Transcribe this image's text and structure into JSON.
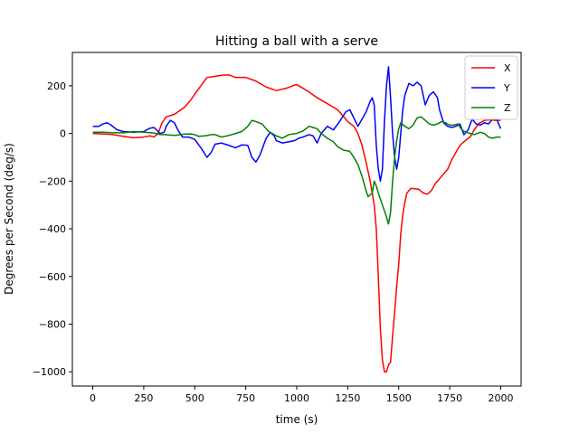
{
  "chart_data": {
    "type": "line",
    "title": "Hitting a ball with a serve",
    "xlabel": "time (s)",
    "ylabel": "Degrees per Second (deg/s)",
    "xlim": [
      -100,
      2100
    ],
    "ylim": [
      -1060,
      340
    ],
    "xticks": [
      0,
      250,
      500,
      750,
      1000,
      1250,
      1500,
      1750,
      2000
    ],
    "xtick_labels": [
      "0",
      "250",
      "500",
      "750",
      "1000",
      "1250",
      "1500",
      "1750",
      "2000"
    ],
    "yticks": [
      -1000,
      -800,
      -600,
      -400,
      -200,
      0,
      200
    ],
    "ytick_labels": [
      "−1000",
      "−800",
      "−600",
      "−400",
      "−200",
      "0",
      "200"
    ],
    "grid": false,
    "legend": "top-right",
    "series": [
      {
        "name": "X",
        "color": "#ff0000",
        "points": [
          [
            0,
            0
          ],
          [
            50,
            -2
          ],
          [
            100,
            -5
          ],
          [
            150,
            -12
          ],
          [
            200,
            -18
          ],
          [
            250,
            -15
          ],
          [
            280,
            -10
          ],
          [
            300,
            -15
          ],
          [
            320,
            0
          ],
          [
            340,
            45
          ],
          [
            360,
            70
          ],
          [
            400,
            80
          ],
          [
            450,
            110
          ],
          [
            480,
            140
          ],
          [
            500,
            165
          ],
          [
            530,
            200
          ],
          [
            560,
            235
          ],
          [
            600,
            240
          ],
          [
            640,
            245
          ],
          [
            670,
            245
          ],
          [
            700,
            235
          ],
          [
            750,
            235
          ],
          [
            800,
            220
          ],
          [
            850,
            195
          ],
          [
            900,
            180
          ],
          [
            950,
            190
          ],
          [
            980,
            200
          ],
          [
            1000,
            205
          ],
          [
            1050,
            180
          ],
          [
            1100,
            150
          ],
          [
            1150,
            125
          ],
          [
            1200,
            100
          ],
          [
            1230,
            70
          ],
          [
            1250,
            50
          ],
          [
            1280,
            30
          ],
          [
            1300,
            0
          ],
          [
            1320,
            -50
          ],
          [
            1340,
            -120
          ],
          [
            1360,
            -200
          ],
          [
            1380,
            -300
          ],
          [
            1390,
            -400
          ],
          [
            1400,
            -600
          ],
          [
            1410,
            -820
          ],
          [
            1420,
            -950
          ],
          [
            1430,
            -1000
          ],
          [
            1440,
            -1000
          ],
          [
            1450,
            -970
          ],
          [
            1460,
            -960
          ],
          [
            1470,
            -850
          ],
          [
            1480,
            -750
          ],
          [
            1490,
            -640
          ],
          [
            1500,
            -550
          ],
          [
            1510,
            -420
          ],
          [
            1520,
            -340
          ],
          [
            1530,
            -290
          ],
          [
            1540,
            -250
          ],
          [
            1560,
            -230
          ],
          [
            1580,
            -232
          ],
          [
            1600,
            -235
          ],
          [
            1620,
            -250
          ],
          [
            1640,
            -255
          ],
          [
            1660,
            -240
          ],
          [
            1680,
            -210
          ],
          [
            1700,
            -190
          ],
          [
            1720,
            -170
          ],
          [
            1740,
            -150
          ],
          [
            1760,
            -110
          ],
          [
            1780,
            -80
          ],
          [
            1800,
            -50
          ],
          [
            1820,
            -35
          ],
          [
            1840,
            -20
          ],
          [
            1850,
            -15
          ],
          [
            1870,
            15
          ],
          [
            1890,
            40
          ],
          [
            1920,
            55
          ],
          [
            1950,
            58
          ],
          [
            1970,
            55
          ],
          [
            2000,
            55
          ]
        ]
      },
      {
        "name": "Y",
        "color": "#0000ff",
        "points": [
          [
            0,
            30
          ],
          [
            30,
            30
          ],
          [
            50,
            40
          ],
          [
            70,
            45
          ],
          [
            90,
            35
          ],
          [
            120,
            15
          ],
          [
            150,
            8
          ],
          [
            200,
            5
          ],
          [
            250,
            8
          ],
          [
            280,
            22
          ],
          [
            300,
            25
          ],
          [
            330,
            0
          ],
          [
            350,
            5
          ],
          [
            360,
            30
          ],
          [
            380,
            55
          ],
          [
            400,
            45
          ],
          [
            420,
            10
          ],
          [
            440,
            -15
          ],
          [
            470,
            -15
          ],
          [
            500,
            -25
          ],
          [
            530,
            -60
          ],
          [
            560,
            -100
          ],
          [
            580,
            -80
          ],
          [
            600,
            -45
          ],
          [
            630,
            -40
          ],
          [
            660,
            -48
          ],
          [
            700,
            -60
          ],
          [
            730,
            -48
          ],
          [
            760,
            -50
          ],
          [
            780,
            -100
          ],
          [
            800,
            -120
          ],
          [
            820,
            -90
          ],
          [
            850,
            -20
          ],
          [
            870,
            5
          ],
          [
            890,
            -10
          ],
          [
            900,
            -30
          ],
          [
            930,
            -40
          ],
          [
            960,
            -35
          ],
          [
            990,
            -30
          ],
          [
            1010,
            -20
          ],
          [
            1030,
            -15
          ],
          [
            1060,
            -5
          ],
          [
            1080,
            -10
          ],
          [
            1100,
            -40
          ],
          [
            1110,
            -20
          ],
          [
            1120,
            0
          ],
          [
            1150,
            30
          ],
          [
            1180,
            15
          ],
          [
            1210,
            50
          ],
          [
            1240,
            90
          ],
          [
            1260,
            100
          ],
          [
            1280,
            65
          ],
          [
            1300,
            30
          ],
          [
            1320,
            60
          ],
          [
            1340,
            90
          ],
          [
            1360,
            135
          ],
          [
            1370,
            150
          ],
          [
            1380,
            120
          ],
          [
            1390,
            -50
          ],
          [
            1400,
            -150
          ],
          [
            1410,
            -200
          ],
          [
            1420,
            -150
          ],
          [
            1430,
            50
          ],
          [
            1440,
            200
          ],
          [
            1450,
            280
          ],
          [
            1460,
            150
          ],
          [
            1470,
            0
          ],
          [
            1480,
            -100
          ],
          [
            1490,
            -150
          ],
          [
            1500,
            -100
          ],
          [
            1510,
            0
          ],
          [
            1520,
            100
          ],
          [
            1530,
            160
          ],
          [
            1550,
            210
          ],
          [
            1570,
            200
          ],
          [
            1590,
            215
          ],
          [
            1610,
            200
          ],
          [
            1630,
            120
          ],
          [
            1650,
            160
          ],
          [
            1670,
            175
          ],
          [
            1690,
            150
          ],
          [
            1700,
            100
          ],
          [
            1720,
            45
          ],
          [
            1740,
            30
          ],
          [
            1760,
            25
          ],
          [
            1780,
            30
          ],
          [
            1800,
            40
          ],
          [
            1820,
            -5
          ],
          [
            1840,
            15
          ],
          [
            1860,
            60
          ],
          [
            1880,
            40
          ],
          [
            1900,
            35
          ],
          [
            1920,
            45
          ],
          [
            1940,
            40
          ],
          [
            1960,
            60
          ],
          [
            1980,
            60
          ],
          [
            2000,
            20
          ]
        ]
      },
      {
        "name": "Z",
        "color": "#008000",
        "points": [
          [
            0,
            5
          ],
          [
            50,
            5
          ],
          [
            100,
            3
          ],
          [
            150,
            3
          ],
          [
            200,
            8
          ],
          [
            250,
            5
          ],
          [
            300,
            2
          ],
          [
            330,
            -5
          ],
          [
            350,
            -5
          ],
          [
            400,
            -8
          ],
          [
            450,
            -3
          ],
          [
            480,
            -2
          ],
          [
            500,
            -5
          ],
          [
            520,
            -12
          ],
          [
            550,
            -10
          ],
          [
            580,
            -5
          ],
          [
            600,
            -5
          ],
          [
            630,
            -15
          ],
          [
            660,
            -10
          ],
          [
            700,
            0
          ],
          [
            730,
            8
          ],
          [
            760,
            30
          ],
          [
            780,
            55
          ],
          [
            800,
            50
          ],
          [
            830,
            40
          ],
          [
            860,
            10
          ],
          [
            900,
            -10
          ],
          [
            930,
            -20
          ],
          [
            960,
            -5
          ],
          [
            1000,
            0
          ],
          [
            1030,
            10
          ],
          [
            1060,
            30
          ],
          [
            1080,
            25
          ],
          [
            1100,
            20
          ],
          [
            1120,
            0
          ],
          [
            1150,
            -20
          ],
          [
            1180,
            -35
          ],
          [
            1200,
            -55
          ],
          [
            1230,
            -70
          ],
          [
            1260,
            -75
          ],
          [
            1280,
            -100
          ],
          [
            1300,
            -130
          ],
          [
            1320,
            -180
          ],
          [
            1340,
            -240
          ],
          [
            1350,
            -265
          ],
          [
            1370,
            -250
          ],
          [
            1380,
            -200
          ],
          [
            1390,
            -220
          ],
          [
            1400,
            -250
          ],
          [
            1420,
            -300
          ],
          [
            1440,
            -350
          ],
          [
            1450,
            -380
          ],
          [
            1460,
            -330
          ],
          [
            1470,
            -200
          ],
          [
            1480,
            -100
          ],
          [
            1490,
            -30
          ],
          [
            1500,
            20
          ],
          [
            1510,
            45
          ],
          [
            1530,
            30
          ],
          [
            1550,
            20
          ],
          [
            1570,
            35
          ],
          [
            1590,
            65
          ],
          [
            1610,
            70
          ],
          [
            1630,
            55
          ],
          [
            1650,
            40
          ],
          [
            1670,
            35
          ],
          [
            1690,
            40
          ],
          [
            1710,
            50
          ],
          [
            1730,
            45
          ],
          [
            1750,
            35
          ],
          [
            1770,
            35
          ],
          [
            1790,
            40
          ],
          [
            1810,
            15
          ],
          [
            1830,
            5
          ],
          [
            1850,
            0
          ],
          [
            1870,
            -5
          ],
          [
            1900,
            5
          ],
          [
            1920,
            0
          ],
          [
            1940,
            -15
          ],
          [
            1960,
            -20
          ],
          [
            1980,
            -15
          ],
          [
            2000,
            -15
          ]
        ]
      }
    ]
  }
}
